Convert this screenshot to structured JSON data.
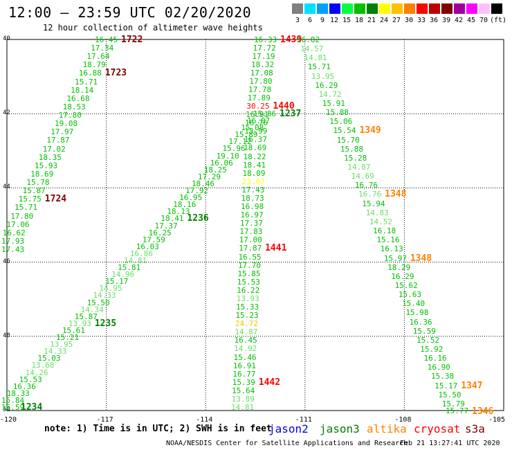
{
  "header": {
    "title": "12:00 – 23:59 UTC 02/20/2020",
    "subtitle": "12 hour collection of altimeter wave heights"
  },
  "colorbar": {
    "colors": [
      "#7f7f7f",
      "#00e0ff",
      "#00a0ff",
      "#0000ff",
      "#00ff40",
      "#00c000",
      "#008000",
      "#ffff00",
      "#ffc000",
      "#ff8000",
      "#ff0000",
      "#c00000",
      "#800000",
      "#a000a0",
      "#ff00ff",
      "#ffbfff",
      "#000000"
    ],
    "labels": [
      "3",
      "6",
      "9",
      "12",
      "15",
      "18",
      "21",
      "24",
      "27",
      "30",
      "33",
      "36",
      "39",
      "42",
      "45",
      "70",
      "(ft)"
    ]
  },
  "axes": {
    "lat_labels": [
      "40",
      "42",
      "44",
      "46",
      "48",
      "50"
    ],
    "lon_labels": [
      "-120",
      "-117",
      "-114",
      "-111",
      "-108",
      "-105"
    ]
  },
  "chart_data": {
    "type": "scatter",
    "title": "12:00 – 23:59 UTC 02/20/2020",
    "subtitle": "12 hour collection of altimeter wave heights",
    "xlabel": "",
    "ylabel": "",
    "xlim": [
      -120,
      -105
    ],
    "ylim": [
      40,
      50
    ],
    "grid": true,
    "units": "ft",
    "satellites": [
      "jason2",
      "jason3",
      "altika",
      "cryosat",
      "s3a"
    ]
  },
  "tracks": [
    {
      "name": "track-1722",
      "color": "#00c000",
      "values": [
        "16.45",
        "17.34",
        "17.64",
        "18.79",
        "16.88",
        "15.71",
        "18.14",
        "16.68",
        "18.53",
        "17.80",
        "19.08",
        "17.97",
        "17.87",
        "17.02",
        "18.35",
        "15.93",
        "18.69",
        "15.78",
        "15.87",
        "15.75",
        "15.71",
        "17.80",
        "17.06",
        "16.62",
        "17.93",
        "17.43"
      ],
      "passes": [
        {
          "text": "1722",
          "color": "#800000",
          "idx": 0
        },
        {
          "text": "1723",
          "color": "#800000",
          "idx": 4
        },
        {
          "text": "1724",
          "color": "#800000",
          "idx": 19
        }
      ]
    },
    {
      "name": "track-1237",
      "color": "#00c000",
      "values": [
        "15.86",
        "16.07",
        "15.08",
        "15.89",
        "17.12",
        "15.96",
        "19.10",
        "16.06",
        "18.25",
        "17.29",
        "18.46",
        "17.92",
        "16.95",
        "18.16",
        "18.13",
        "18.41",
        "17.37",
        "16.25",
        "17.59",
        "16.03",
        "16.86",
        "14.81",
        "15.81",
        "14.96",
        "15.17",
        "14.95",
        "14.33",
        "15.50",
        "14.34",
        "15.87",
        "13.93",
        "15.61",
        "15.21",
        "13.95",
        "14.33",
        "15.03",
        "13.68",
        "14.26",
        "15.53",
        "16.36",
        "18.33",
        "15.84",
        "16.59"
      ],
      "light": [
        20,
        21,
        23,
        25,
        26,
        28,
        30,
        33,
        34,
        36,
        37
      ],
      "passes": [
        {
          "text": "1237",
          "color": "#008000",
          "idx": 0
        },
        {
          "text": "1236",
          "color": "#008000",
          "idx": 15
        },
        {
          "text": "1235",
          "color": "#008000",
          "idx": 30
        },
        {
          "text": "1234",
          "color": "#008000",
          "idx": 42
        }
      ]
    },
    {
      "name": "track-1440",
      "color": "#00c000",
      "values": [
        "16.33",
        "17.72",
        "17.19",
        "18.32",
        "17.08",
        "17.80",
        "17.78",
        "17.89",
        "30.25",
        "16.91",
        "16.76",
        "15.99",
        "16.37",
        "18.69",
        "18.22",
        "18.41",
        "18.09",
        "23.07",
        "17.43",
        "18.73",
        "16.98",
        "16.97",
        "17.37",
        "17.83",
        "17.00",
        "17.87",
        "16.55",
        "17.70",
        "15.85",
        "15.53",
        "16.22",
        "13.93",
        "15.33",
        "15.23",
        "24.72",
        "14.87",
        "16.45",
        "14.92",
        "15.46",
        "16.91",
        "16.77",
        "15.39",
        "15.64",
        "13.89",
        "14.81"
      ],
      "light": [
        31,
        35,
        37,
        43,
        44
      ],
      "special": [
        {
          "idx": 8,
          "color": "#ff0000"
        },
        {
          "idx": 17,
          "color": "#ffff00"
        },
        {
          "idx": 34,
          "color": "#ffc000"
        }
      ],
      "passes": [
        {
          "text": "1439",
          "color": "#ff0000",
          "idx": 0
        },
        {
          "text": "1440",
          "color": "#ff0000",
          "idx": 8
        },
        {
          "text": "1441",
          "color": "#ff0000",
          "idx": 25
        },
        {
          "text": "1442",
          "color": "#ff0000",
          "idx": 41
        }
      ]
    },
    {
      "name": "track-1349",
      "color": "#00c000",
      "values": [
        "16.82",
        "14.57",
        "14.81",
        "15.71",
        "13.95",
        "16.29",
        "14.72",
        "15.91",
        "15.88",
        "15.06",
        "15.54",
        "15.70",
        "15.88",
        "15.28",
        "14.87",
        "14.69",
        "16.76",
        "16.76",
        "15.94",
        "14.83",
        "14.52",
        "16.18",
        "15.16",
        "16.13",
        "15.97",
        "18.29",
        "16.29",
        "15.62",
        "15.63",
        "15.40",
        "15.98",
        "16.36",
        "15.59",
        "15.52",
        "15.92",
        "16.16",
        "16.90",
        "15.38",
        "15.17",
        "15.50",
        "15.79",
        "15.77"
      ],
      "light": [
        1,
        2,
        4,
        6,
        14,
        15,
        17,
        19,
        20
      ],
      "passes": [
        {
          "text": "1349",
          "color": "#ff8000",
          "idx": 10
        },
        {
          "text": "1348",
          "color": "#ff8000",
          "idx": 17
        },
        {
          "text": "1348",
          "color": "#ff8000",
          "idx": 24
        },
        {
          "text": "1347",
          "color": "#ff8000",
          "idx": 38
        },
        {
          "text": "1346",
          "color": "#ff8000",
          "idx": 41
        }
      ]
    }
  ],
  "footer": {
    "note": "note:  1) Time is in UTC;  2) SWH is in feet",
    "credit": "NOAA/NESDIS Center for Satellite Applications and Research",
    "generated": "Feb 21 13:27:41 UTC 2020"
  },
  "legend": [
    {
      "text": "jason2",
      "color": "#0000ff"
    },
    {
      "text": "jason3",
      "color": "#008000"
    },
    {
      "text": "altika",
      "color": "#ff8000"
    },
    {
      "text": "cryosat",
      "color": "#ff0000"
    },
    {
      "text": "s3a",
      "color": "#800000"
    }
  ]
}
